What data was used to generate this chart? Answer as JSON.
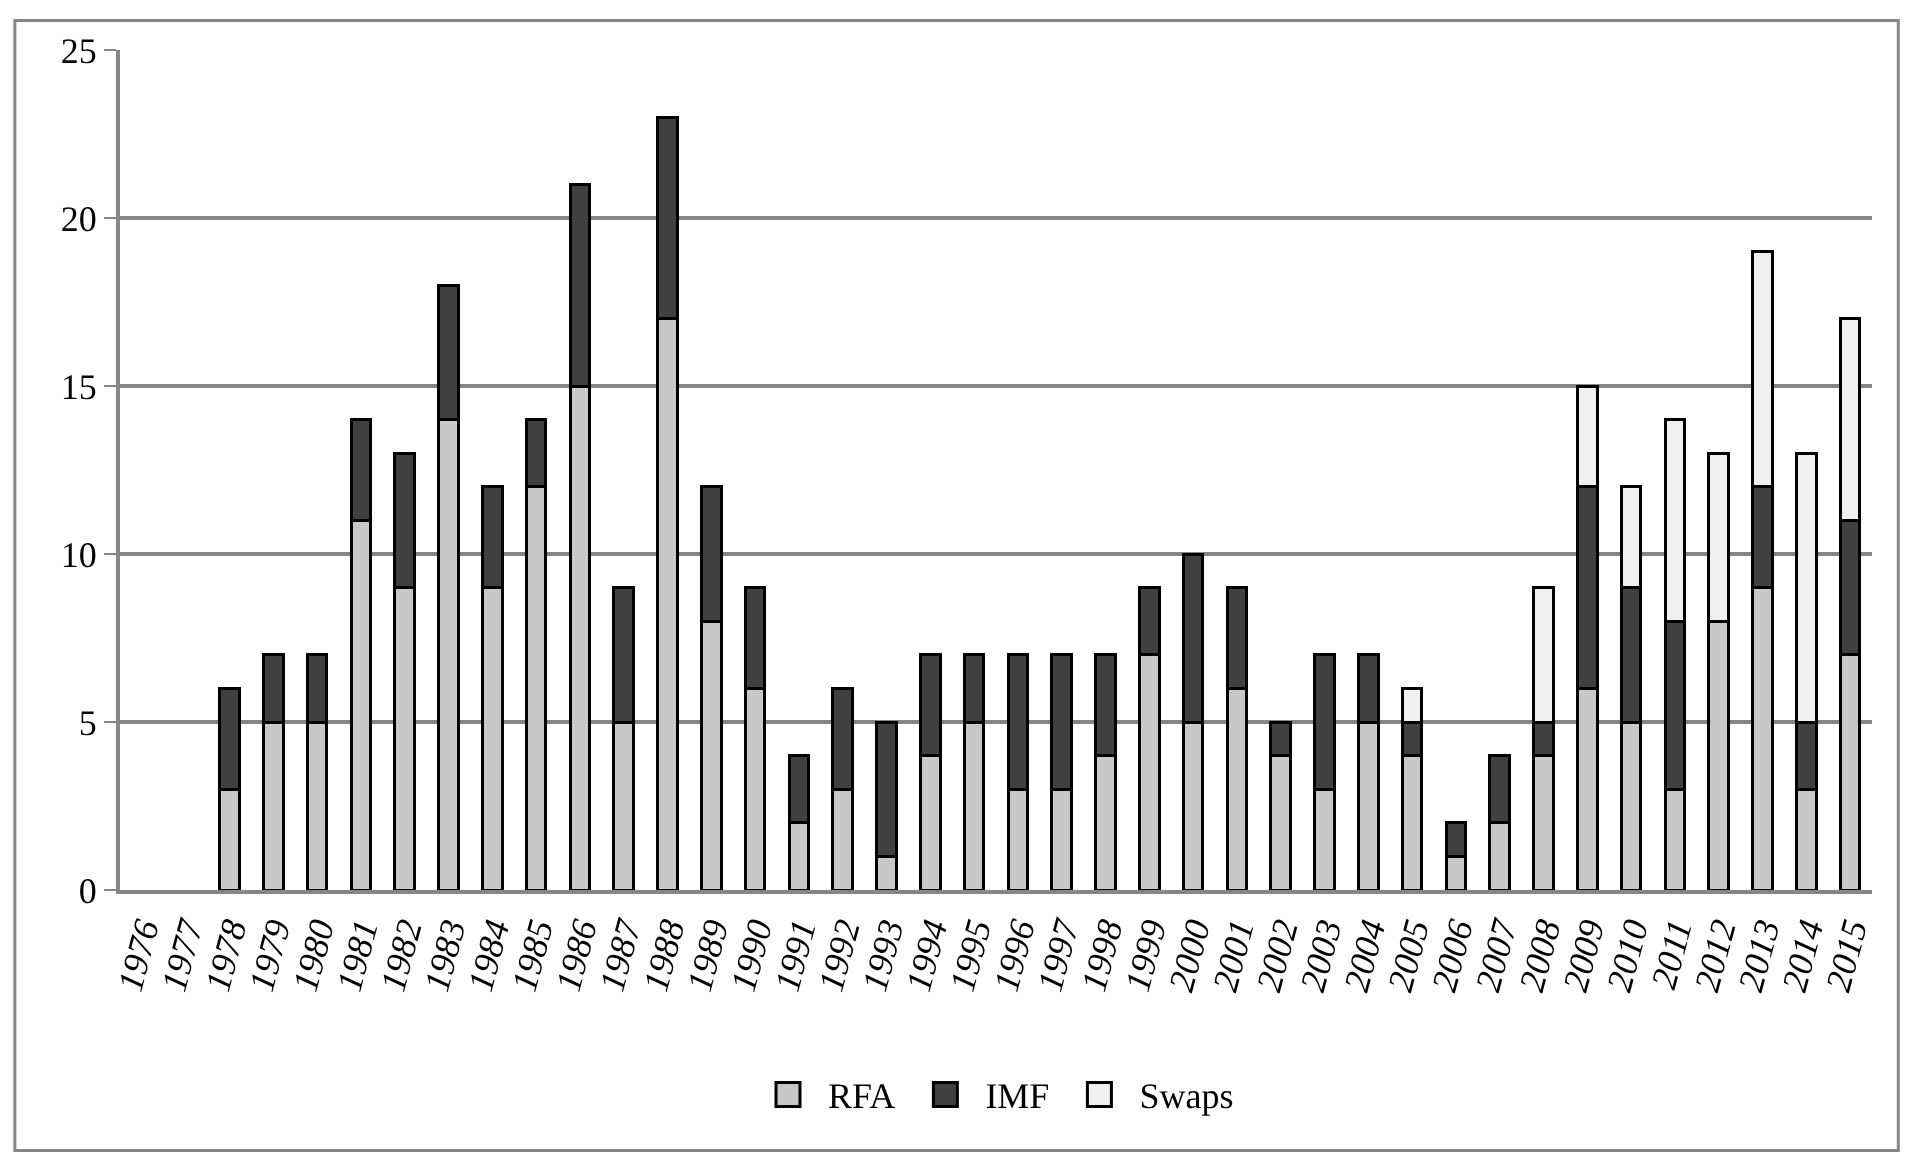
{
  "chart_data": {
    "type": "bar",
    "stacked": true,
    "categories": [
      "1976",
      "1977",
      "1978",
      "1979",
      "1980",
      "1981",
      "1982",
      "1983",
      "1984",
      "1985",
      "1986",
      "1987",
      "1988",
      "1989",
      "1990",
      "1991",
      "1992",
      "1993",
      "1994",
      "1995",
      "1996",
      "1997",
      "1998",
      "1999",
      "2000",
      "2001",
      "2002",
      "2003",
      "2004",
      "2005",
      "2006",
      "2007",
      "2008",
      "2009",
      "2010",
      "2011",
      "2012",
      "2013",
      "2014",
      "2015"
    ],
    "series": [
      {
        "name": "RFA",
        "color": "#c8c8c8",
        "values": [
          null,
          null,
          3,
          5,
          5,
          11,
          9,
          14,
          9,
          12,
          15,
          5,
          17,
          8,
          6,
          2,
          3,
          1,
          4,
          5,
          3,
          3,
          4,
          7,
          5,
          6,
          4,
          3,
          5,
          4,
          1,
          2,
          4,
          6,
          5,
          3,
          8,
          9,
          3,
          7
        ]
      },
      {
        "name": "IMF",
        "color": "#404040",
        "values": [
          null,
          null,
          3,
          2,
          2,
          3,
          4,
          4,
          3,
          2,
          6,
          4,
          6,
          4,
          3,
          2,
          3,
          4,
          3,
          2,
          4,
          4,
          3,
          2,
          5,
          3,
          1,
          4,
          2,
          1,
          1,
          2,
          1,
          6,
          4,
          5,
          null,
          3,
          2,
          4
        ]
      },
      {
        "name": "Swaps",
        "color": "#f0f0f0",
        "values": [
          null,
          null,
          null,
          null,
          null,
          null,
          null,
          null,
          null,
          null,
          null,
          null,
          null,
          null,
          null,
          null,
          null,
          null,
          null,
          null,
          null,
          null,
          null,
          null,
          null,
          null,
          null,
          null,
          null,
          1,
          null,
          null,
          4,
          3,
          3,
          6,
          5,
          7,
          8,
          6
        ]
      }
    ],
    "ylim": [
      0,
      25
    ],
    "yticks": [
      0,
      5,
      10,
      15,
      20,
      25
    ],
    "grid": "y",
    "legend": "bottom"
  }
}
